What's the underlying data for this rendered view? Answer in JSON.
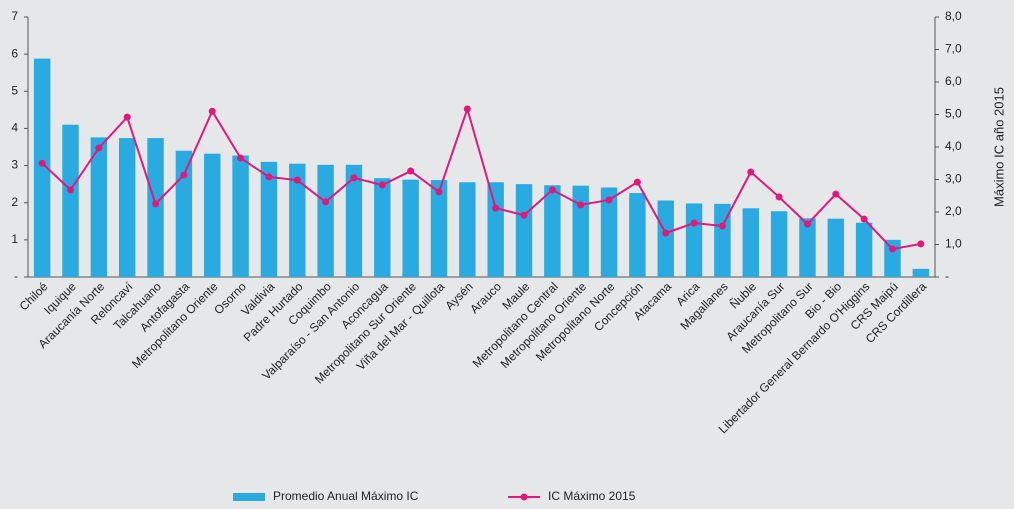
{
  "chart_data": {
    "type": "bar",
    "y2label": "Máximo IC año 2015",
    "categories": [
      "Chiloé",
      "Iquique",
      "Araucanía Norte",
      "Reloncaví",
      "Talcahuano",
      "Antofagasta",
      "Metropolitano Oriente",
      "Osorno",
      "Valdivia",
      "Padre Hurtado",
      "Coquimbo",
      "Valparaíso - San Antonio",
      "Aconcagua",
      "Metropolitano Sur Oriente",
      "Viña del Mar - Quillota",
      "Aysén",
      "Arauco",
      "Maule",
      "Metropolitano Central",
      "Metropolitano Oriente",
      "Metropolitano Norte",
      "Concepción",
      "Atacama",
      "Arica",
      "Magallanes",
      "Ñuble",
      "Araucanía Sur",
      "Metropolitano Sur",
      "Bio - Bio",
      "Libertador General Bernardo O'Higgins",
      "CRS Maipú",
      "CRS Cordillera"
    ],
    "series": [
      {
        "name": "Promedio Anual Máximo IC",
        "type": "bar",
        "color": "#29abe2",
        "values": [
          5.88,
          4.1,
          3.76,
          3.74,
          3.74,
          3.4,
          3.32,
          3.27,
          3.1,
          3.05,
          3.02,
          3.02,
          2.66,
          2.62,
          2.61,
          2.55,
          2.55,
          2.5,
          2.47,
          2.46,
          2.41,
          2.26,
          2.06,
          1.98,
          1.97,
          1.85,
          1.77,
          1.58,
          1.57,
          1.46,
          1.0,
          0.22
        ]
      },
      {
        "name": "IC Máximo 2015",
        "type": "line",
        "axis": "y2",
        "color": "#e0197d",
        "values": [
          3.5,
          2.68,
          3.97,
          4.92,
          2.25,
          3.14,
          5.1,
          3.66,
          3.08,
          2.98,
          2.31,
          3.05,
          2.83,
          3.26,
          2.62,
          5.17,
          2.12,
          1.9,
          2.68,
          2.22,
          2.37,
          2.92,
          1.35,
          1.66,
          1.57,
          3.23,
          2.46,
          1.63,
          2.55,
          1.78,
          0.86,
          1.02
        ]
      }
    ],
    "ylim": [
      0,
      7
    ],
    "yticks": [
      {
        "value": 0,
        "label": "-"
      },
      1,
      2,
      3,
      4,
      5,
      6,
      7
    ],
    "y2lim": [
      0,
      8
    ],
    "y2ticks": [
      {
        "value": 0,
        "label": "-"
      },
      {
        "value": 1,
        "label": "1,0"
      },
      {
        "value": 2,
        "label": "2,0"
      },
      {
        "value": 3,
        "label": "3,0"
      },
      {
        "value": 4,
        "label": "4,0"
      },
      {
        "value": 5,
        "label": "5,0"
      },
      {
        "value": 6,
        "label": "6,0"
      },
      {
        "value": 7,
        "label": "7,0"
      },
      {
        "value": 8,
        "label": "8,0"
      }
    ],
    "legend": "bottom"
  }
}
